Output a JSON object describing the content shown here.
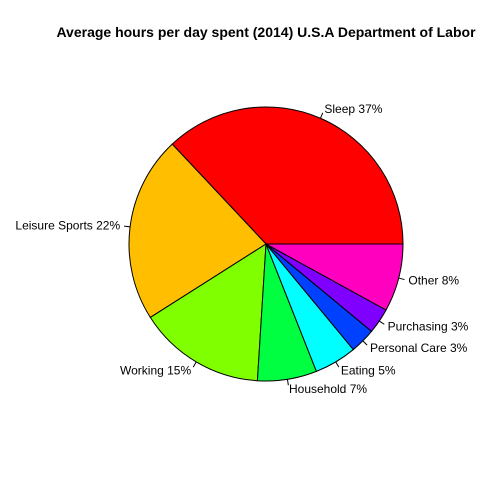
{
  "chart_data": {
    "type": "pie",
    "title": "Average hours per day spent (2014) U.S.A Department of Labor",
    "direction": "counterclockwise",
    "start": "3 o'clock",
    "slices": [
      {
        "label": "Sleep 37%",
        "value": 37,
        "color": "#FF0000"
      },
      {
        "label": "Leisure Sports 22%",
        "value": 22,
        "color": "#FFBF00"
      },
      {
        "label": "Working 15%",
        "value": 15,
        "color": "#80FF00"
      },
      {
        "label": "Household 7%",
        "value": 7,
        "color": "#00FF40"
      },
      {
        "label": "Eating 5%",
        "value": 5,
        "color": "#00FFFF"
      },
      {
        "label": "Personal Care 3%",
        "value": 3,
        "color": "#0040FF"
      },
      {
        "label": "Purchasing 3%",
        "value": 3,
        "color": "#8000FF"
      },
      {
        "label": "Other 8%",
        "value": 8,
        "color": "#FF00BF"
      }
    ]
  }
}
